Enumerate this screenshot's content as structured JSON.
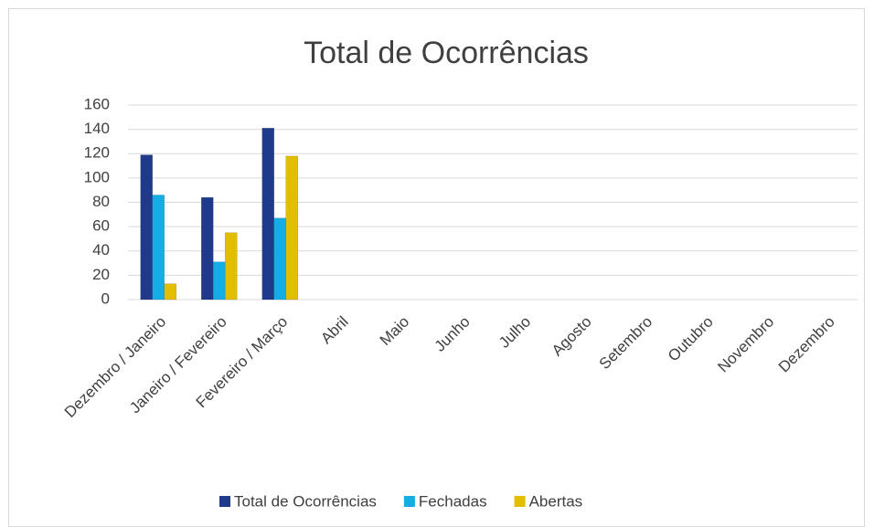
{
  "chart_data": {
    "type": "bar",
    "title": "Total de Ocorrências",
    "categories": [
      "Dezembro / Janeiro",
      "Janeiro / Fevereiro",
      "Fevereiro / Março",
      "Abril",
      "Maio",
      "Junho",
      "Julho",
      "Agosto",
      "Setembro",
      "Outubro",
      "Novembro",
      "Dezembro"
    ],
    "series": [
      {
        "name": "Total de Ocorrências",
        "color": "#1f3a8a",
        "values": [
          119,
          84,
          141,
          null,
          null,
          null,
          null,
          null,
          null,
          null,
          null,
          null
        ]
      },
      {
        "name": "Fechadas",
        "color": "#16ade6",
        "values": [
          86,
          31,
          67,
          null,
          null,
          null,
          null,
          null,
          null,
          null,
          null,
          null
        ]
      },
      {
        "name": "Abertas",
        "color": "#e3bd00",
        "values": [
          13,
          55,
          118,
          null,
          null,
          null,
          null,
          null,
          null,
          null,
          null,
          null
        ]
      }
    ],
    "ylim": [
      0,
      160
    ],
    "yticks": [
      0,
      20,
      40,
      60,
      80,
      100,
      120,
      140,
      160
    ],
    "grid": true,
    "legend": "bottom"
  }
}
